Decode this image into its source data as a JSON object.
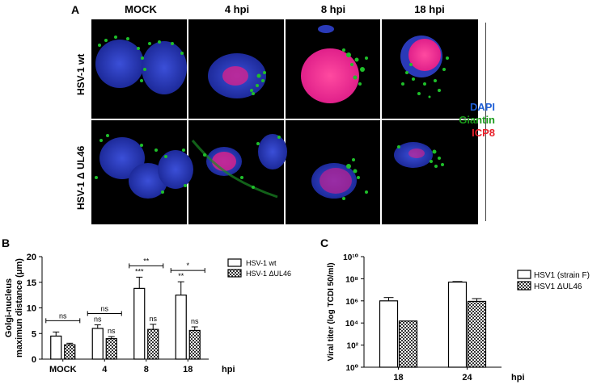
{
  "panel_a": {
    "letter": "A",
    "columns": [
      "MOCK",
      "4 hpi",
      "8 hpi",
      "18 hpi"
    ],
    "rows": [
      "HSV-1 wt",
      "HSV-1 Δ UL46"
    ],
    "stain_legend": [
      {
        "label": "DAPI",
        "color": "#1f5fd6"
      },
      {
        "label": "Giantin",
        "color": "#1a9a1a"
      },
      {
        "label": "ICP8",
        "color": "#e8202a"
      }
    ]
  },
  "panel_b": {
    "letter": "B",
    "legend": [
      "HSV-1 wt",
      "HSV-1 ΔUL46"
    ]
  },
  "panel_c": {
    "letter": "C",
    "legend": [
      "HSV1 (strain F)",
      "HSV1 ΔUL46"
    ]
  },
  "chart_data": [
    {
      "type": "bar",
      "ylabel": "Golgi-nucleus\nmaximun distance (μm)",
      "xlabel": "hpi",
      "categories": [
        "MOCK",
        "4",
        "8",
        "18"
      ],
      "ylim": [
        0,
        20
      ],
      "yticks": [
        "0",
        "5",
        "10",
        "15",
        "20"
      ],
      "series": [
        {
          "name": "HSV-1 wt",
          "values": [
            4.5,
            6.0,
            13.8,
            12.5
          ],
          "errors": [
            0.8,
            0.7,
            2.2,
            2.6
          ],
          "labels": [
            "",
            "ns",
            "***",
            "**"
          ]
        },
        {
          "name": "HSV-1 ΔUL46",
          "values": [
            2.8,
            4.0,
            5.8,
            5.6
          ],
          "errors": [
            0.3,
            0.4,
            1.0,
            0.7
          ],
          "labels": [
            "",
            "ns",
            "ns",
            "ns"
          ]
        }
      ],
      "brackets": [
        {
          "category": "MOCK",
          "label": "ns"
        },
        {
          "category": "4",
          "label": "ns"
        },
        {
          "category": "8",
          "label": "**"
        },
        {
          "category": "18",
          "label": "*"
        }
      ]
    },
    {
      "type": "bar",
      "ylabel": "Viral titer (log TCDI 50/ml)",
      "xlabel": "hpi",
      "categories": [
        "18",
        "24"
      ],
      "yscale": "log",
      "ylim": [
        1,
        10000000000
      ],
      "yticks": [
        "10⁰",
        "10²",
        "10⁴",
        "10⁶",
        "10⁸",
        "10¹⁰"
      ],
      "series": [
        {
          "name": "HSV1 (strain F)",
          "values": [
            1000000,
            50000000
          ],
          "errors_log": [
            0.3,
            0.05
          ]
        },
        {
          "name": "HSV1 ΔUL46",
          "values": [
            15000,
            900000
          ],
          "errors_log": [
            0.0,
            0.25
          ]
        }
      ]
    }
  ]
}
